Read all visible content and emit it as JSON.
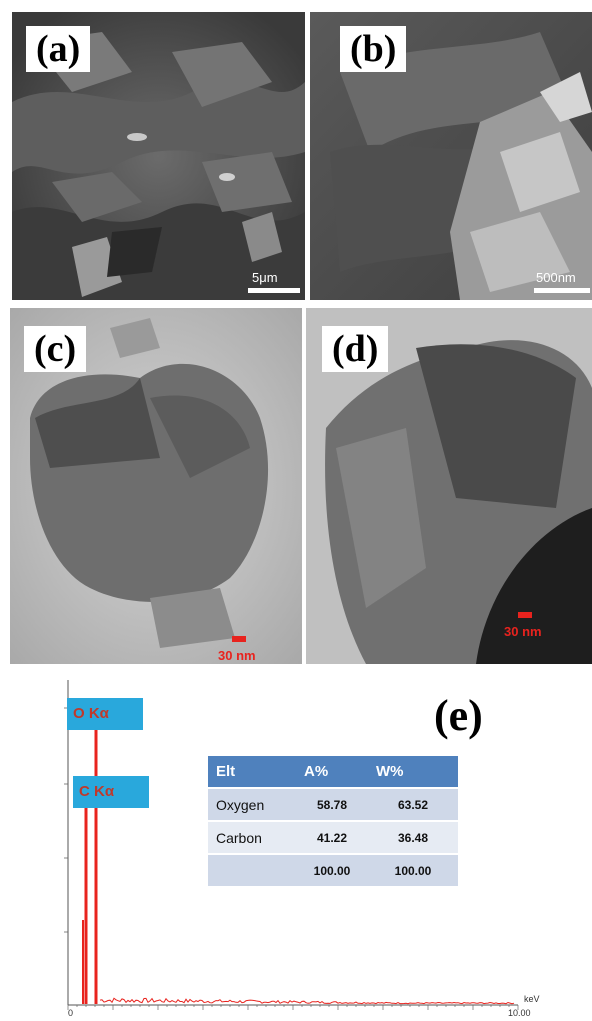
{
  "panels": {
    "a": {
      "label": "(a)",
      "scale": "5μm"
    },
    "b": {
      "label": "(b)",
      "scale": "500nm"
    },
    "c": {
      "label": "(c)",
      "scale": "30 nm"
    },
    "d": {
      "label": "(d)",
      "scale": "30 nm"
    }
  },
  "eds": {
    "panel_label": "(e)",
    "peak_labels": {
      "o": "O Kα",
      "c": "C Kα"
    },
    "x_axis_unit": "keV",
    "x_tick_labels": {
      "start": "0",
      "end": "10.00"
    },
    "table": {
      "headers": [
        "Elt",
        "A%",
        "W%"
      ],
      "rows": [
        [
          "Oxygen",
          "58.78",
          "63.52"
        ],
        [
          "Carbon",
          "41.22",
          "36.48"
        ],
        [
          "",
          "100.00",
          "100.00"
        ]
      ]
    },
    "colors": {
      "spectrum": "#e8231e",
      "label_bg": "#29a8dc",
      "table_header": "#4f81bd"
    }
  }
}
